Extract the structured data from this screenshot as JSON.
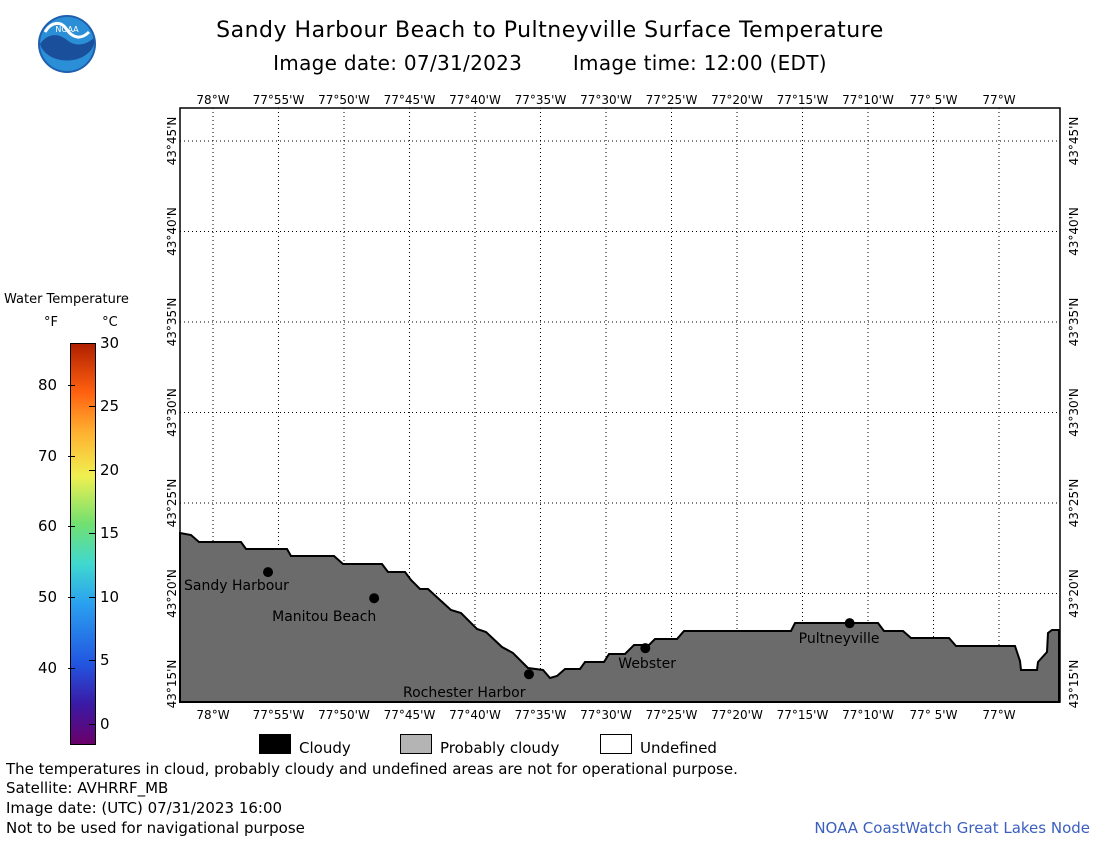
{
  "header": {
    "title": "Sandy Harbour Beach to Pultneyville Surface Temperature",
    "image_date": "Image date: 07/31/2023",
    "image_time": "Image time: 12:00 (EDT)"
  },
  "logo": {
    "text": "NOAA",
    "icon": "noaa-logo-icon"
  },
  "map": {
    "lon_labels": [
      "78°W",
      "77°55'W",
      "77°50'W",
      "77°45'W",
      "77°40'W",
      "77°35'W",
      "77°30'W",
      "77°25'W",
      "77°20'W",
      "77°15'W",
      "77°10'W",
      "77° 5'W",
      "77°W"
    ],
    "lat_labels": [
      "43°45'N",
      "43°40'N",
      "43°35'N",
      "43°30'N",
      "43°25'N",
      "43°20'N",
      "43°15'N"
    ],
    "land_color": "#6b6b6b",
    "water_color": "#ffffff",
    "cities": [
      {
        "name": "Sandy Harbour",
        "lon": -77.93,
        "lat": 43.353
      },
      {
        "name": "Manitou Beach",
        "lon": -77.795,
        "lat": 43.329
      },
      {
        "name": "Rochester Harbor",
        "lon": -77.598,
        "lat": 43.259
      },
      {
        "name": "Webster",
        "lon": -77.45,
        "lat": 43.283
      },
      {
        "name": "Pultneyville",
        "lon": -77.19,
        "lat": 43.306
      }
    ]
  },
  "colorbar": {
    "title": "Water Temperature",
    "unit_f": "°F",
    "unit_c": "°C",
    "fahrenheit_ticks": [
      "80",
      "70",
      "60",
      "50",
      "40"
    ],
    "celsius_ticks": [
      "30",
      "25",
      "20",
      "15",
      "10",
      "5",
      "0"
    ]
  },
  "legend": {
    "cloudy": {
      "label": "Cloudy",
      "color": "#000000"
    },
    "probably_cloudy": {
      "label": "Probably cloudy",
      "color": "#b4b4b4"
    },
    "undefined": {
      "label": "Undefined",
      "color": "#ffffff"
    }
  },
  "footer": {
    "disclaimer": "The temperatures in cloud, probably cloudy and undefined areas are not for operational purpose.",
    "satellite": "Satellite: AVHRRF_MB",
    "utc_date": "Image date: (UTC) 07/31/2023  16:00",
    "nav_warning": "Not to be used for navigational purpose",
    "credit": "NOAA CoastWatch Great Lakes Node"
  }
}
